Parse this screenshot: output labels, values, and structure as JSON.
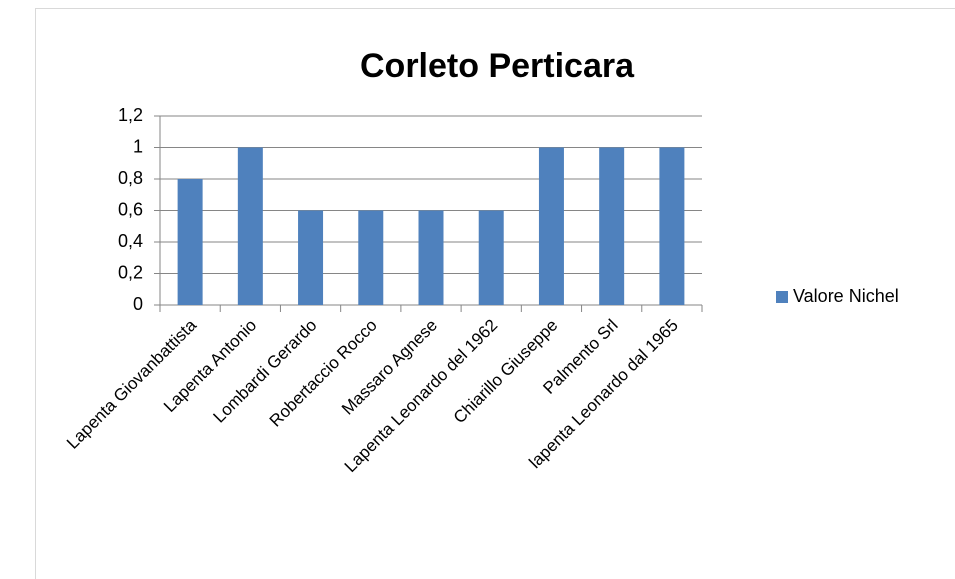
{
  "chart_data": {
    "type": "bar",
    "title": "Corleto Perticara",
    "categories": [
      "Lapenta Giovanbattista",
      "Lapenta Antonio",
      "Lombardi Gerardo",
      "Robertaccio Rocco",
      "Massaro Agnese",
      "Lapenta Leonardo del 1962",
      "Chiarillo Giuseppe",
      "Palmento Srl",
      "lapenta Leonardo dal 1965"
    ],
    "series": [
      {
        "name": "Valore Nichel",
        "color": "#4f81bd",
        "values": [
          0.8,
          1,
          0.6,
          0.6,
          0.6,
          0.6,
          1,
          1,
          1
        ]
      }
    ],
    "ylim": [
      0,
      1.2
    ],
    "yticks": [
      0,
      {
        "value": 0.2,
        "label": "0,2"
      },
      {
        "value": 0.4,
        "label": "0,4"
      },
      {
        "value": 0.6,
        "label": "0,6"
      },
      {
        "value": 0.8,
        "label": "0,8"
      },
      1,
      {
        "value": 1.2,
        "label": "1,2"
      }
    ],
    "grid": true,
    "legend": "right"
  }
}
